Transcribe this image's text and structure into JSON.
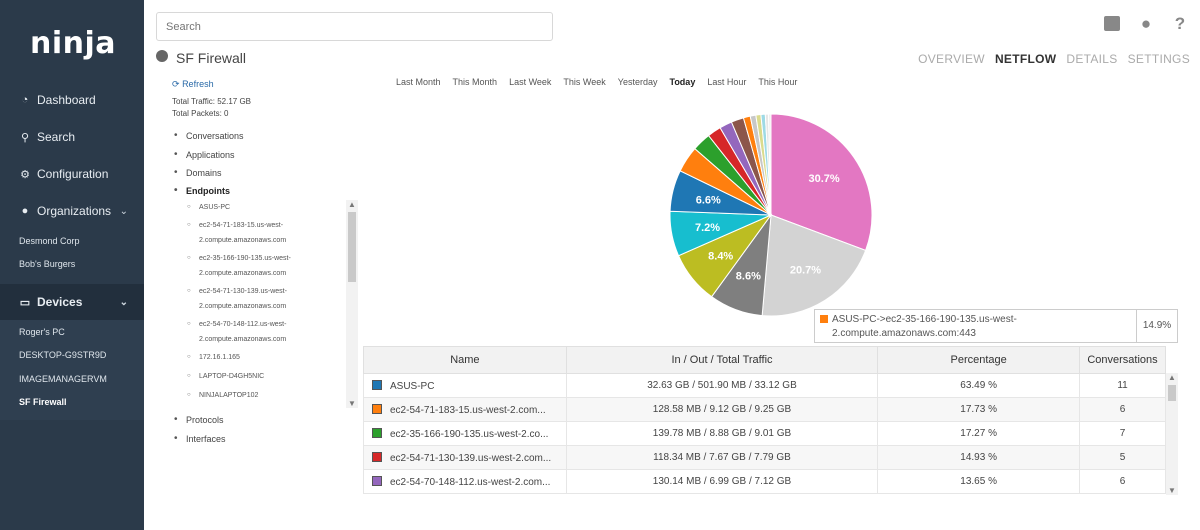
{
  "sidebar": {
    "logo": "ninja",
    "nav": [
      {
        "label": "Dashboard",
        "icon": "dashboard-icon"
      },
      {
        "label": "Search",
        "icon": "search-icon"
      },
      {
        "label": "Configuration",
        "icon": "gear-icon"
      },
      {
        "label": "Organizations",
        "icon": "user-icon"
      }
    ],
    "organizations": [
      "Desmond Corp",
      "Bob's Burgers"
    ],
    "devices_label": "Devices",
    "devices": [
      "Roger's PC",
      "DESKTOP-G9STR9D",
      "IMAGEMANAGERVM",
      "SF Firewall"
    ],
    "current_device": "SF Firewall"
  },
  "search": {
    "placeholder": "Search"
  },
  "page": {
    "title": "SF Firewall",
    "tabs": [
      "OVERVIEW",
      "NETFLOW",
      "DETAILS",
      "SETTINGS"
    ],
    "active_tab": "NETFLOW"
  },
  "netflow": {
    "refresh_label": "Refresh",
    "total_traffic": "Total Traffic: 52.17 GB",
    "total_packets": "Total Packets: 0",
    "sections_top": [
      "Conversations",
      "Applications",
      "Domains",
      "Endpoints"
    ],
    "endpoints": [
      {
        "l1": "ASUS-PC",
        "l2": ""
      },
      {
        "l1": "ec2-54-71-183-15.us-west-",
        "l2": "2.compute.amazonaws.com"
      },
      {
        "l1": "ec2-35-166-190-135.us-west-",
        "l2": "2.compute.amazonaws.com"
      },
      {
        "l1": "ec2-54-71-130-139.us-west-",
        "l2": "2.compute.amazonaws.com"
      },
      {
        "l1": "ec2-54-70-148-112.us-west-",
        "l2": "2.compute.amazonaws.com"
      },
      {
        "l1": "172.16.1.165",
        "l2": ""
      },
      {
        "l1": "LAPTOP-D4GH5NIC",
        "l2": ""
      },
      {
        "l1": "NINJALAPTOP102",
        "l2": ""
      }
    ],
    "sections_bottom": [
      "Protocols",
      "Interfaces"
    ],
    "timeframes": [
      "Last Month",
      "This Month",
      "Last Week",
      "This Week",
      "Yesterday",
      "Today",
      "Last Hour",
      "This Hour"
    ],
    "active_timeframe": "Today"
  },
  "chart_data": {
    "type": "pie",
    "slices": [
      {
        "value": 30.7,
        "label": "30.7%",
        "color": "#e377c2"
      },
      {
        "value": 20.7,
        "label": "20.7%",
        "color": "#d3d3d3"
      },
      {
        "value": 8.6,
        "label": "8.6%",
        "color": "#7f7f7f"
      },
      {
        "value": 8.4,
        "label": "8.4%",
        "color": "#bcbd22"
      },
      {
        "value": 7.2,
        "label": "7.2%",
        "color": "#17becf"
      },
      {
        "value": 6.6,
        "label": "6.6%",
        "color": "#1f77b4"
      },
      {
        "value": 4.2,
        "label": "",
        "color": "#ff7f0e"
      },
      {
        "value": 3.0,
        "label": "",
        "color": "#2ca02c"
      },
      {
        "value": 2.2,
        "label": "",
        "color": "#d62728"
      },
      {
        "value": 2.0,
        "label": "",
        "color": "#9467bd"
      },
      {
        "value": 2.0,
        "label": "",
        "color": "#8c564b"
      },
      {
        "value": 1.1,
        "label": "",
        "color": "#ff7f0e"
      },
      {
        "value": 0.9,
        "label": "",
        "color": "#c7c7c7"
      },
      {
        "value": 0.8,
        "label": "",
        "color": "#dbdb8d"
      },
      {
        "value": 0.7,
        "label": "",
        "color": "#9edae5"
      },
      {
        "value": 0.5,
        "label": "",
        "color": "#e6e6e6"
      },
      {
        "value": 0.4,
        "label": "",
        "color": "#f0f0f0"
      }
    ]
  },
  "tooltip": {
    "line1": "ASUS-PC->ec2-35-166-190-135.us-west-",
    "line2": "2.compute.amazonaws.com:443",
    "value": "14.9%",
    "color": "#ff7f0e"
  },
  "table": {
    "headers": [
      "Name",
      "In / Out / Total Traffic",
      "Percentage",
      "Conversations"
    ],
    "rows": [
      {
        "name": "ASUS-PC",
        "traffic": "32.63 GB / 501.90 MB / 33.12 GB",
        "pct": "63.49 %",
        "conv": "11",
        "color": "#1f77b4"
      },
      {
        "name": "ec2-54-71-183-15.us-west-2.com...",
        "traffic": "128.58 MB / 9.12 GB / 9.25 GB",
        "pct": "17.73 %",
        "conv": "6",
        "color": "#ff7f0e"
      },
      {
        "name": "ec2-35-166-190-135.us-west-2.co...",
        "traffic": "139.78 MB / 8.88 GB / 9.01 GB",
        "pct": "17.27 %",
        "conv": "7",
        "color": "#2ca02c"
      },
      {
        "name": "ec2-54-71-130-139.us-west-2.com...",
        "traffic": "118.34 MB / 7.67 GB / 7.79 GB",
        "pct": "14.93 %",
        "conv": "5",
        "color": "#d62728"
      },
      {
        "name": "ec2-54-70-148-112.us-west-2.com...",
        "traffic": "130.14 MB / 6.99 GB / 7.12 GB",
        "pct": "13.65 %",
        "conv": "6",
        "color": "#9467bd"
      }
    ]
  }
}
